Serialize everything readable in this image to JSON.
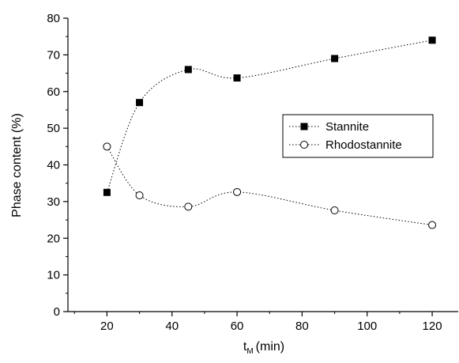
{
  "chart_data": {
    "type": "scatter",
    "title": "",
    "xlabel": "t",
    "xlabel_sub": "M",
    "xlabel_unit": "(min)",
    "ylabel": "Phase content (%)",
    "xlim": [
      8,
      128
    ],
    "ylim": [
      0,
      80
    ],
    "xticks": [
      20,
      40,
      60,
      80,
      100,
      120
    ],
    "yticks": [
      0,
      10,
      20,
      30,
      40,
      50,
      60,
      70,
      80
    ],
    "legend_position": "center-right",
    "series": [
      {
        "name": "Stannite",
        "marker": "filled-square",
        "line": "dotted",
        "color": "#000000",
        "x": [
          20,
          30,
          45,
          60,
          90,
          120
        ],
        "y": [
          32.5,
          57,
          66,
          63.7,
          69,
          74
        ]
      },
      {
        "name": "Rhodostannite",
        "marker": "open-circle",
        "line": "dotted",
        "color": "#000000",
        "x": [
          20,
          30,
          45,
          60,
          90,
          120
        ],
        "y": [
          45,
          31.7,
          28.6,
          32.6,
          27.6,
          23.6
        ]
      }
    ]
  }
}
